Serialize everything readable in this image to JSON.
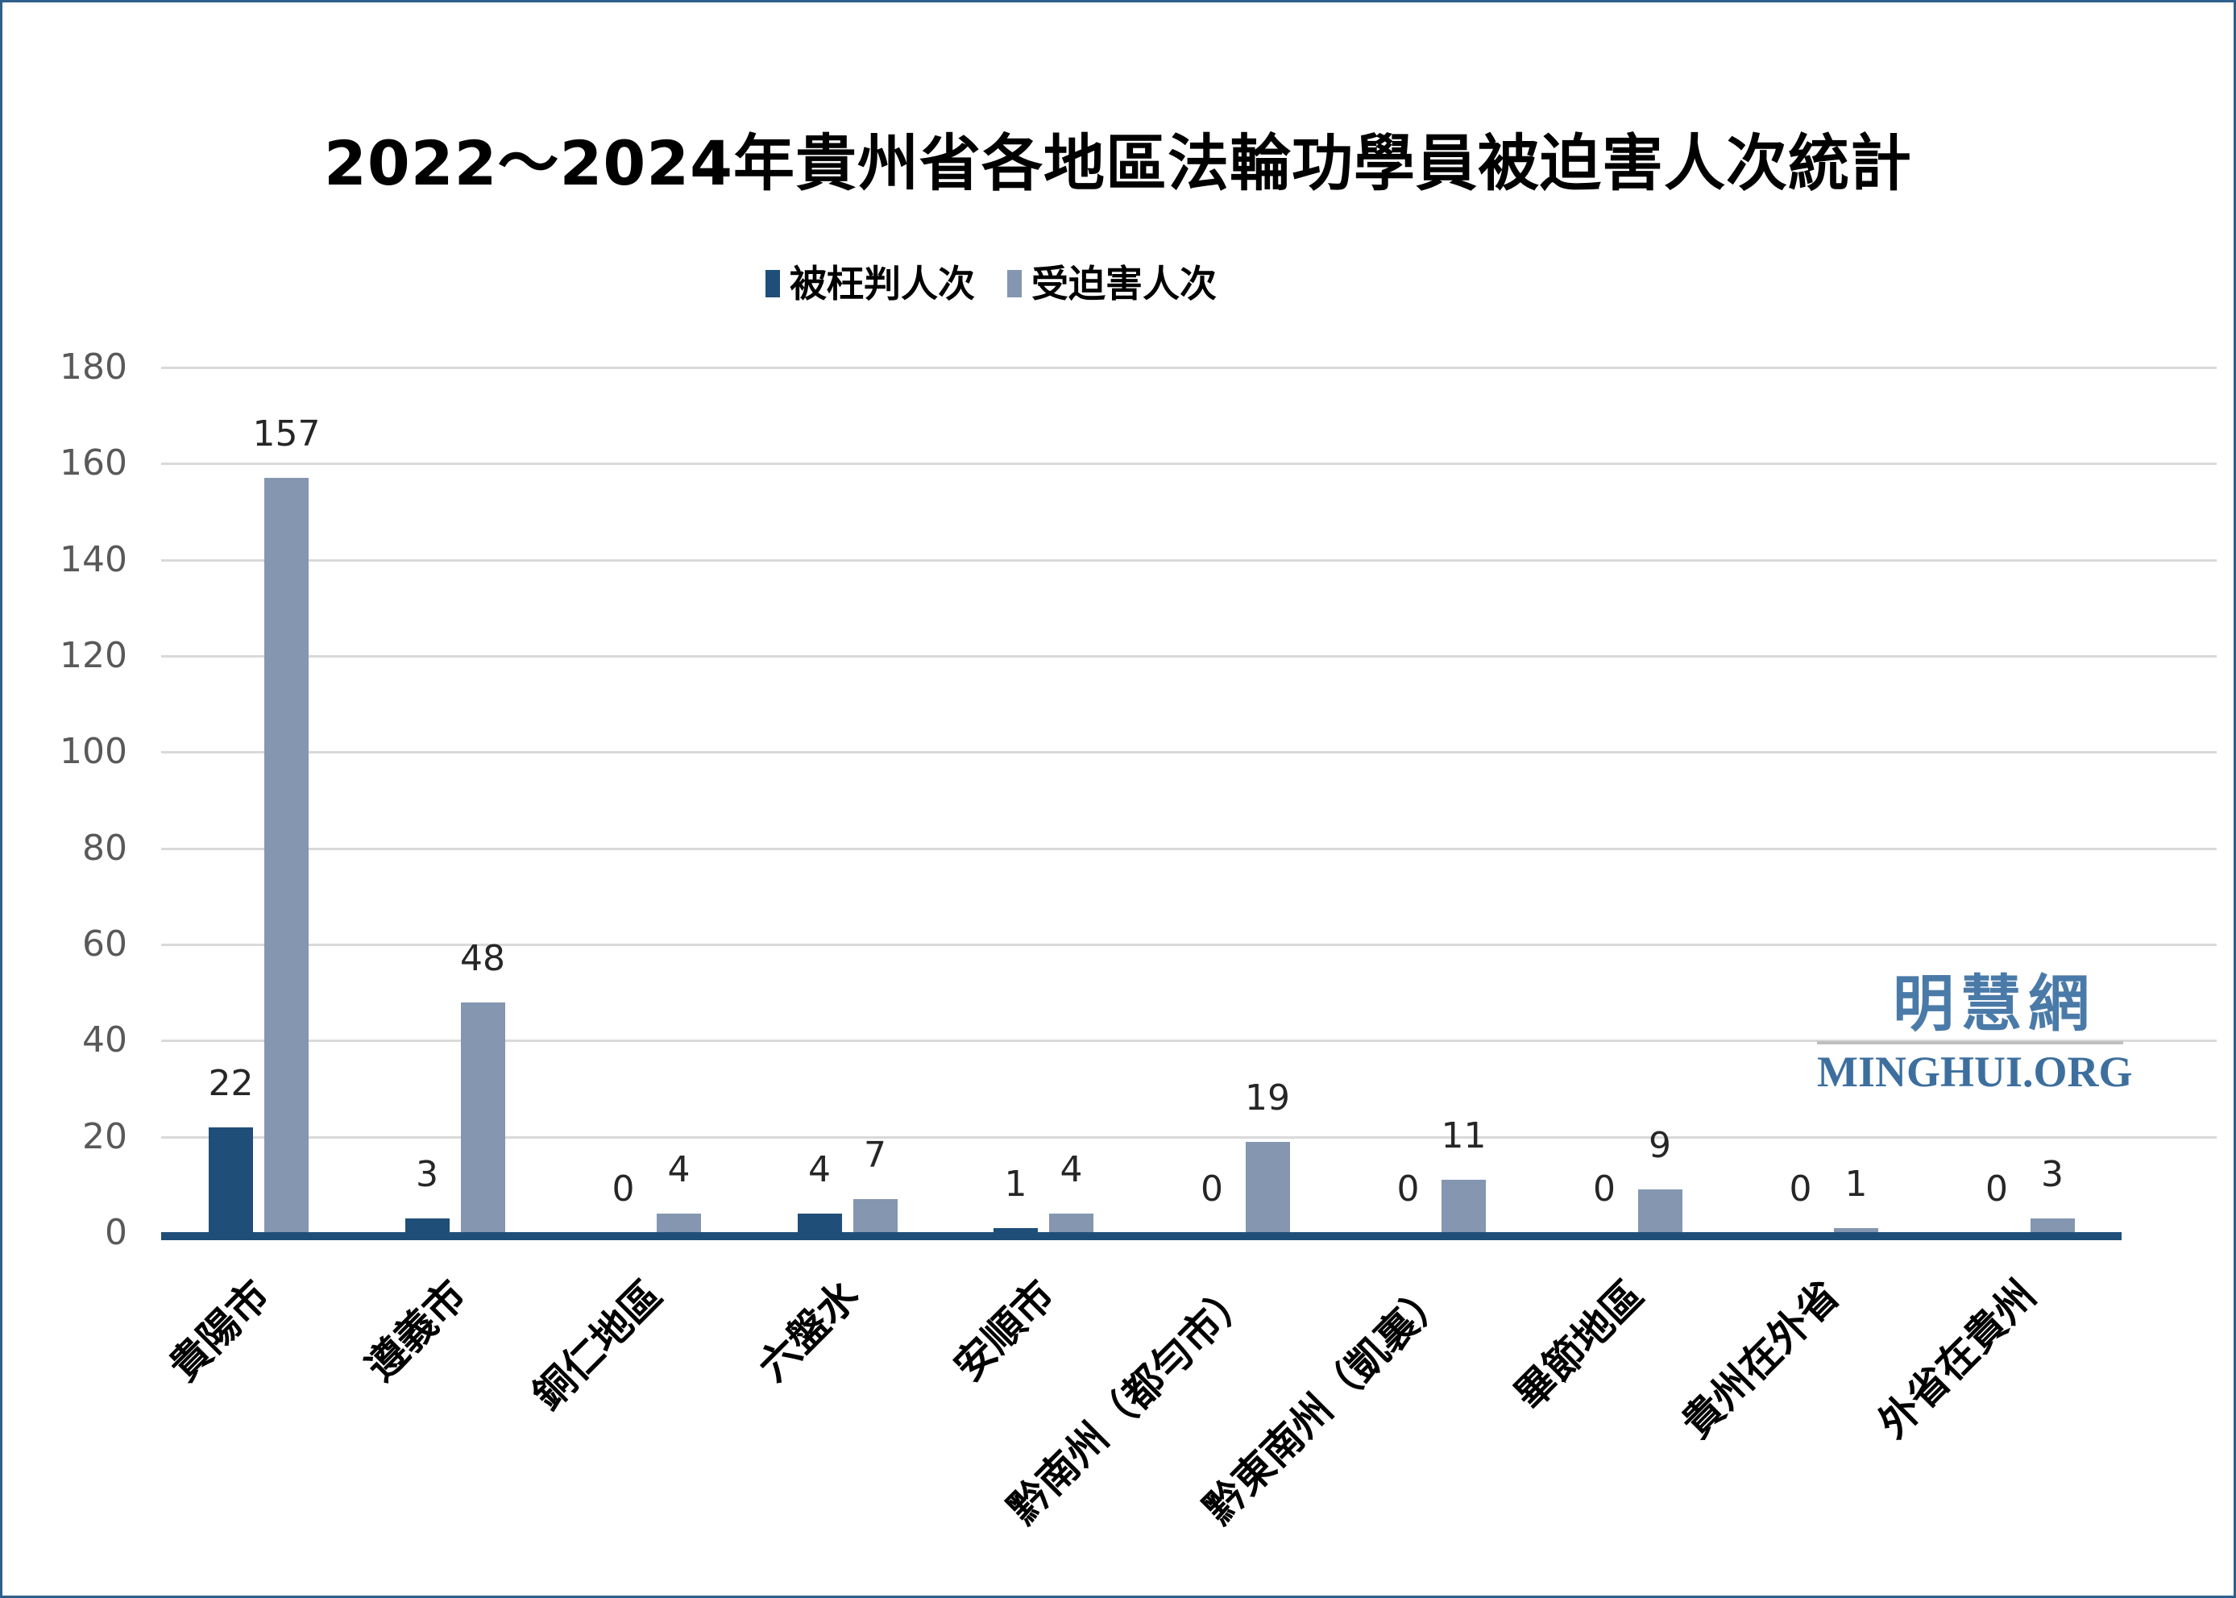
{
  "chart_data": {
    "type": "bar",
    "title": "2022～2024年貴州省各地區法輪功學員被迫害人次統計",
    "categories": [
      "貴陽市",
      "遵義市",
      "銅仁地區",
      "六盤水",
      "安順市",
      "黔南州（都勻市）",
      "黔東南州（凱裏）",
      "畢節地區",
      "貴州在外省",
      "外省在貴州"
    ],
    "series": [
      {
        "name": "被枉判人次",
        "color": "#1F4E79",
        "values": [
          22,
          3,
          0,
          4,
          1,
          0,
          0,
          0,
          0,
          0
        ]
      },
      {
        "name": "受迫害人次",
        "color": "#8496B0",
        "values": [
          157,
          48,
          4,
          7,
          4,
          19,
          11,
          9,
          1,
          3
        ]
      }
    ],
    "ylabel": "",
    "xlabel": "",
    "ylim": [
      0,
      180
    ],
    "yticks": [
      0,
      20,
      40,
      60,
      80,
      100,
      120,
      140,
      160,
      180
    ],
    "grid": true,
    "legend_position": "top",
    "gridline_color": "#D9D9D9",
    "axis_line_color": "#1F4E79",
    "tick_label_color": "#595959",
    "data_label_color": "#262626"
  },
  "watermark": {
    "line1": "明慧網",
    "line2": "MINGHUI.ORG"
  }
}
